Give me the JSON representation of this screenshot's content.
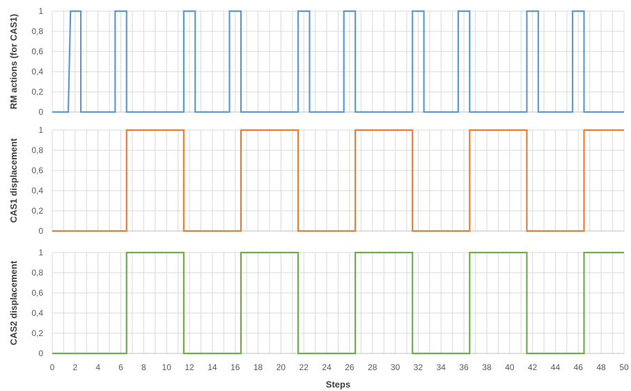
{
  "chart_data": {
    "type": "line",
    "shared_x": {
      "label": "Steps",
      "range": [
        0,
        50
      ],
      "tick_labels": [
        "0",
        "2",
        "4",
        "6",
        "8",
        "10",
        "12",
        "14",
        "16",
        "18",
        "20",
        "22",
        "24",
        "26",
        "28",
        "30",
        "32",
        "34",
        "36",
        "38",
        "40",
        "42",
        "44",
        "46",
        "48",
        "50"
      ],
      "grid": "vertical lines at every step"
    },
    "panels": [
      {
        "ylabel": "RM actions (for CAS1)",
        "ylim": [
          0,
          1
        ],
        "y_tick_labels": [
          "0",
          "0,2",
          "0,4",
          "0,6",
          "0,8",
          "1"
        ],
        "color": "#5b9bd5",
        "x": [
          0,
          1.4,
          1.6,
          2.5,
          2.5,
          5.5,
          5.5,
          6.5,
          6.5,
          11.5,
          11.5,
          12.5,
          12.5,
          15.5,
          15.5,
          16.5,
          16.5,
          21.5,
          21.5,
          22.5,
          22.5,
          25.5,
          25.5,
          26.5,
          26.5,
          31.5,
          31.5,
          32.5,
          32.5,
          35.5,
          35.5,
          36.5,
          36.5,
          41.5,
          41.5,
          42.5,
          42.5,
          45.5,
          45.5,
          46.5,
          46.5,
          50
        ],
        "y": [
          0,
          0,
          1,
          1,
          0,
          0,
          1,
          1,
          0,
          0,
          1,
          1,
          0,
          0,
          1,
          1,
          0,
          0,
          1,
          1,
          0,
          0,
          1,
          1,
          0,
          0,
          1,
          1,
          0,
          0,
          1,
          1,
          0,
          0,
          1,
          1,
          0,
          0,
          1,
          1,
          0,
          0
        ]
      },
      {
        "ylabel": "CAS1 displacement",
        "ylim": [
          0,
          1
        ],
        "y_tick_labels": [
          "0",
          "0,2",
          "0,4",
          "0,6",
          "0,8",
          "1"
        ],
        "color": "#ed7d31",
        "x": [
          0,
          6.5,
          6.5,
          11.5,
          11.5,
          16.5,
          16.5,
          21.5,
          21.5,
          26.5,
          26.5,
          31.5,
          31.5,
          36.5,
          36.5,
          41.5,
          41.5,
          46.5,
          46.5,
          50
        ],
        "y": [
          0,
          0,
          1,
          1,
          0,
          0,
          1,
          1,
          0,
          0,
          1,
          1,
          0,
          0,
          1,
          1,
          0,
          0,
          1,
          1
        ]
      },
      {
        "ylabel": "CAS2 displacement",
        "ylim": [
          0,
          1
        ],
        "y_tick_labels": [
          "0",
          "0,2",
          "0,4",
          "0,6",
          "0,8",
          "1"
        ],
        "color": "#70ad47",
        "x": [
          0,
          6.5,
          6.5,
          11.5,
          11.5,
          16.5,
          16.5,
          21.5,
          21.5,
          26.5,
          26.5,
          31.5,
          31.5,
          36.5,
          36.5,
          41.5,
          41.5,
          46.5,
          46.5,
          50
        ],
        "y": [
          0,
          0,
          1,
          1,
          0,
          0,
          1,
          1,
          0,
          0,
          1,
          1,
          0,
          0,
          1,
          1,
          0,
          0,
          1,
          1
        ]
      }
    ]
  }
}
